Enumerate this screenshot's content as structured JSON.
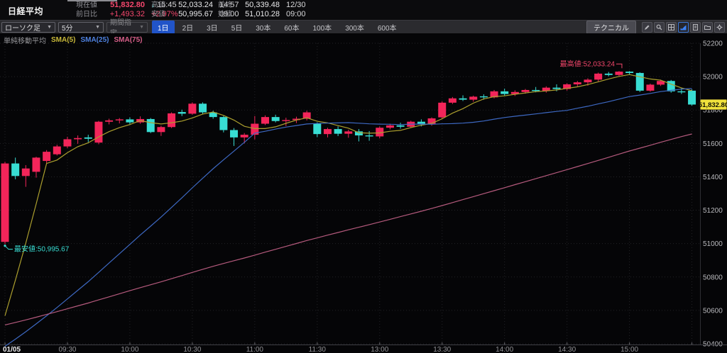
{
  "header": {
    "title": "日経平均",
    "current": {
      "label": "現在値",
      "value": "51,832.80",
      "arrow": "↓",
      "time": "15:45"
    },
    "change": {
      "label": "前日比",
      "value": "+1,493.32",
      "pct": "+2.97%"
    },
    "high": {
      "label": "高値",
      "value": "52,033.24",
      "time": "14:57"
    },
    "low": {
      "label": "安値",
      "value": "50,995.67",
      "time": "09:00"
    },
    "prev_close": {
      "label": "前終",
      "value": "50,339.48",
      "time": "12/30"
    },
    "open": {
      "label": "始値",
      "value": "51,010.28",
      "time": "09:00"
    }
  },
  "toolbar": {
    "chart_type": "ローソク足",
    "interval": "5分",
    "range_picker": "期間指定",
    "periods": [
      {
        "label": "1日",
        "active": true
      },
      {
        "label": "2日",
        "active": false
      },
      {
        "label": "3日",
        "active": false
      },
      {
        "label": "5日",
        "active": false
      },
      {
        "label": "30本",
        "active": false
      },
      {
        "label": "60本",
        "active": false
      },
      {
        "label": "100本",
        "active": false
      },
      {
        "label": "300本",
        "active": false
      },
      {
        "label": "600本",
        "active": false
      }
    ],
    "technical_label": "テクニカル",
    "icons": [
      "pencil-icon",
      "magnifier-icon",
      "grid-icon",
      "area-chart-icon",
      "document-icon",
      "folder-icon",
      "settings-icon"
    ]
  },
  "legend": {
    "title": "単純移動平均",
    "items": [
      {
        "label": "SMA(5)",
        "color": "#c9b93a"
      },
      {
        "label": "SMA(25)",
        "color": "#4f82e0"
      },
      {
        "label": "SMA(75)",
        "color": "#d8608a"
      }
    ]
  },
  "chart_data": {
    "type": "candlestick",
    "title": "日経平均 5分足 1日",
    "grid": true,
    "y_axis": {
      "min": 50400,
      "max": 52200,
      "step": 200,
      "labels": [
        "52200",
        "52000",
        "51800",
        "51600",
        "51400",
        "51200",
        "51000",
        "50800",
        "50600",
        "50400"
      ]
    },
    "x_labels": [
      {
        "label": "01/05",
        "bar": 0,
        "em": true
      },
      {
        "label": "09:30",
        "bar": 6
      },
      {
        "label": "10:00",
        "bar": 12
      },
      {
        "label": "10:30",
        "bar": 18
      },
      {
        "label": "11:00",
        "bar": 24
      },
      {
        "label": "11:30",
        "bar": 30
      },
      {
        "label": "13:00",
        "bar": 36
      },
      {
        "label": "13:30",
        "bar": 42
      },
      {
        "label": "14:00",
        "bar": 48
      },
      {
        "label": "14:30",
        "bar": 54
      },
      {
        "label": "15:00",
        "bar": 60
      },
      {
        "label": "",
        "bar": 66
      }
    ],
    "prev_close": 50339.48,
    "current_price": "51,832.80",
    "current_price_value": 51832.8,
    "high_annotation": {
      "text": "最高値:52,033.24",
      "bar": 59,
      "price": 52033.24
    },
    "low_annotation": {
      "text": "最安値:50,995.67",
      "bar": 0,
      "price": 50995.67
    },
    "colors": {
      "up": "#f3255a",
      "down": "#38ddd3",
      "grid": "#232327",
      "axis_text": "#b9b9bd",
      "axis_line": "#3f3f45",
      "x_text": "#929296",
      "x_text_em": "#ededef",
      "tag_bg": "#f0e23c",
      "tag_text": "#151505",
      "high_note": "#f3466b",
      "low_note": "#38ddd3"
    },
    "sma": [
      {
        "label": "SMA(5)",
        "period": 5,
        "color": "#ac9f2e",
        "pre_start": 50339.48,
        "pre_end": 50339.48
      },
      {
        "label": "SMA(25)",
        "period": 25,
        "color": "#3d68c2",
        "pre_start": 50339.48,
        "pre_end": 50339.48
      },
      {
        "label": "SMA(75)",
        "period": 75,
        "color": "#b55a7d",
        "pre_start": 50300,
        "pre_end": 50700
      }
    ],
    "candles": [
      [
        "09:00",
        51010.28,
        51490,
        50995.67,
        51480
      ],
      [
        "09:05",
        51480,
        51515,
        51385,
        51405
      ],
      [
        "09:10",
        51405,
        51470,
        51340,
        51450
      ],
      [
        "09:15",
        51430,
        51520,
        51395,
        51515
      ],
      [
        "09:20",
        51495,
        51560,
        51480,
        51550
      ],
      [
        "09:25",
        51535,
        51592,
        51528,
        51582
      ],
      [
        "09:30",
        51582,
        51640,
        51572,
        51625
      ],
      [
        "09:35",
        51625,
        51648,
        51598,
        51632
      ],
      [
        "09:40",
        51636,
        51652,
        51608,
        51628
      ],
      [
        "09:45",
        51605,
        51735,
        51595,
        51730
      ],
      [
        "09:50",
        51730,
        51748,
        51714,
        51738
      ],
      [
        "09:55",
        51738,
        51752,
        51720,
        51744
      ],
      [
        "10:00",
        51744,
        51756,
        51712,
        51726
      ],
      [
        "10:05",
        51726,
        51762,
        51718,
        51746
      ],
      [
        "10:10",
        51746,
        51752,
        51662,
        51668
      ],
      [
        "10:15",
        51668,
        51706,
        51645,
        51698
      ],
      [
        "10:20",
        51698,
        51786,
        51692,
        51780
      ],
      [
        "10:25",
        51788,
        51802,
        51764,
        51778
      ],
      [
        "10:30",
        51778,
        51846,
        51772,
        51838
      ],
      [
        "10:35",
        51838,
        51846,
        51776,
        51786
      ],
      [
        "10:40",
        51786,
        51796,
        51748,
        51758
      ],
      [
        "10:45",
        51758,
        51764,
        51666,
        51680
      ],
      [
        "10:50",
        51680,
        51692,
        51585,
        51636
      ],
      [
        "10:55",
        51636,
        51662,
        51600,
        51652
      ],
      [
        "11:00",
        51652,
        51764,
        51624,
        51718
      ],
      [
        "11:05",
        51718,
        51768,
        51710,
        51758
      ],
      [
        "11:10",
        51758,
        51772,
        51726,
        51734
      ],
      [
        "11:15",
        51734,
        51754,
        51704,
        51740
      ],
      [
        "11:20",
        51740,
        51760,
        51722,
        51748
      ],
      [
        "11:25",
        51748,
        51796,
        51738,
        51786
      ],
      [
        "12:30",
        51718,
        51726,
        51638,
        51656
      ],
      [
        "12:35",
        51656,
        51694,
        51636,
        51686
      ],
      [
        "12:40",
        51686,
        51702,
        51644,
        51658
      ],
      [
        "12:45",
        51658,
        51682,
        51634,
        51672
      ],
      [
        "12:50",
        51672,
        51686,
        51612,
        51648
      ],
      [
        "12:55",
        51648,
        51674,
        51616,
        51642
      ],
      [
        "13:00",
        51642,
        51702,
        51630,
        51694
      ],
      [
        "13:05",
        51694,
        51718,
        51684,
        51708
      ],
      [
        "13:10",
        51708,
        51724,
        51688,
        51700
      ],
      [
        "13:15",
        51700,
        51736,
        51694,
        51730
      ],
      [
        "13:20",
        51730,
        51744,
        51702,
        51714
      ],
      [
        "13:25",
        51714,
        51756,
        51706,
        51750
      ],
      [
        "13:30",
        51756,
        51852,
        51748,
        51844
      ],
      [
        "13:35",
        51844,
        51878,
        51836,
        51870
      ],
      [
        "13:40",
        51870,
        51888,
        51854,
        51862
      ],
      [
        "13:45",
        51862,
        51886,
        51850,
        51880
      ],
      [
        "13:50",
        51882,
        51894,
        51862,
        51876
      ],
      [
        "13:55",
        51876,
        51920,
        51870,
        51912
      ],
      [
        "14:00",
        51912,
        51928,
        51886,
        51896
      ],
      [
        "14:05",
        51896,
        51918,
        51884,
        51908
      ],
      [
        "14:10",
        51908,
        51926,
        51898,
        51920
      ],
      [
        "14:15",
        51920,
        51938,
        51906,
        51914
      ],
      [
        "14:20",
        51914,
        51942,
        51904,
        51934
      ],
      [
        "14:25",
        51934,
        51954,
        51912,
        51926
      ],
      [
        "14:30",
        51926,
        51960,
        51916,
        51954
      ],
      [
        "14:35",
        51954,
        51974,
        51942,
        51966
      ],
      [
        "14:40",
        51966,
        51990,
        51946,
        51982
      ],
      [
        "14:45",
        51982,
        52024,
        51972,
        52018
      ],
      [
        "14:50",
        52018,
        52028,
        52002,
        52010
      ],
      [
        "14:55",
        52010,
        52033.24,
        52004,
        52030
      ],
      [
        "15:00",
        52030,
        52033,
        52012,
        52022
      ],
      [
        "15:05",
        52022,
        52026,
        51908,
        51916
      ],
      [
        "15:10",
        51916,
        51958,
        51910,
        51952
      ],
      [
        "15:15",
        51952,
        51982,
        51944,
        51974
      ],
      [
        "15:20",
        51974,
        51980,
        51904,
        51912
      ],
      [
        "15:25",
        51912,
        51932,
        51896,
        51906
      ],
      [
        "15:30",
        51916,
        51924,
        51826,
        51832.8
      ]
    ]
  }
}
